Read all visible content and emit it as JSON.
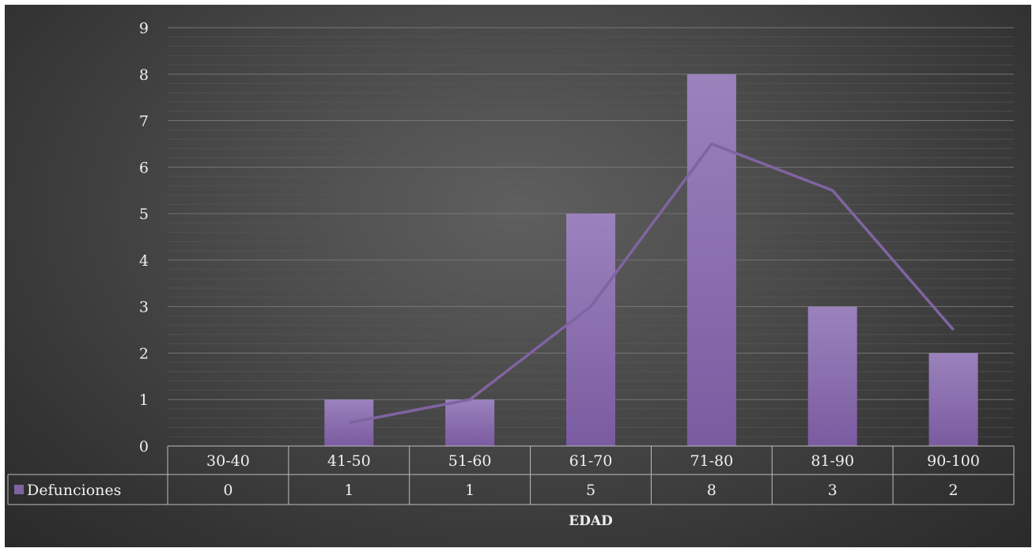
{
  "chart_data": {
    "type": "bar",
    "categories": [
      "30-40",
      "41-50",
      "51-60",
      "61-70",
      "71-80",
      "81-90",
      "90-100"
    ],
    "series": [
      {
        "name": "Defunciones",
        "values": [
          0,
          1,
          1,
          5,
          8,
          3,
          2
        ]
      }
    ],
    "trendline": {
      "type": "moving-average",
      "values": [
        null,
        0.5,
        1,
        3,
        6.5,
        5.5,
        2.5
      ]
    },
    "xlabel": "EDAD",
    "ylabel": "",
    "ylim": [
      0,
      9
    ],
    "yticks": [
      "0",
      "1",
      "2",
      "3",
      "4",
      "5",
      "6",
      "7",
      "8",
      "9"
    ],
    "grid": true,
    "legend": "data-table",
    "data_table": true,
    "colors": {
      "bar": "#8064a2",
      "trendline": "#8064a2",
      "background": "#444444",
      "text": "#f0f0f0"
    }
  }
}
